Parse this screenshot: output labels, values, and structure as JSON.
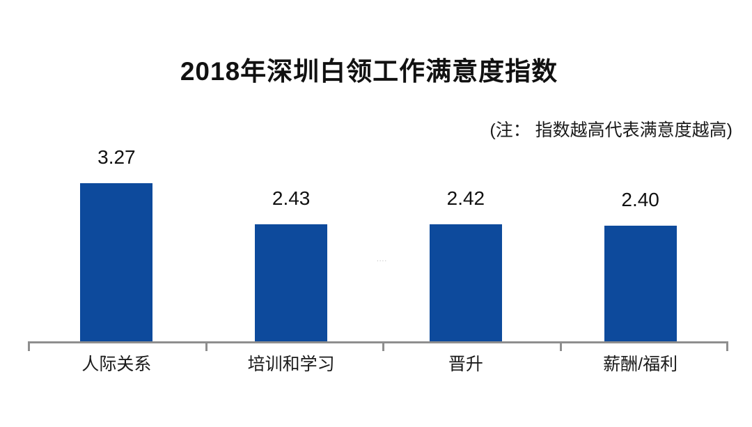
{
  "chart_data": {
    "type": "bar",
    "title": "2018年深圳白领工作满意度指数",
    "note": "(注： 指数越高代表满意度越高)",
    "categories": [
      "人际关系",
      "培训和学习",
      "晋升",
      "薪酬/福利"
    ],
    "values": [
      3.27,
      2.43,
      2.42,
      2.4
    ],
    "value_labels": [
      "3.27",
      "2.43",
      "2.42",
      "2.40"
    ],
    "ylim": [
      0,
      3.5
    ],
    "grid": false,
    "legend": false,
    "bar_color": "#0d4a9c",
    "axis_color": "#8e8e8e",
    "text_color": "#1a1a1a",
    "watermark": "...."
  }
}
